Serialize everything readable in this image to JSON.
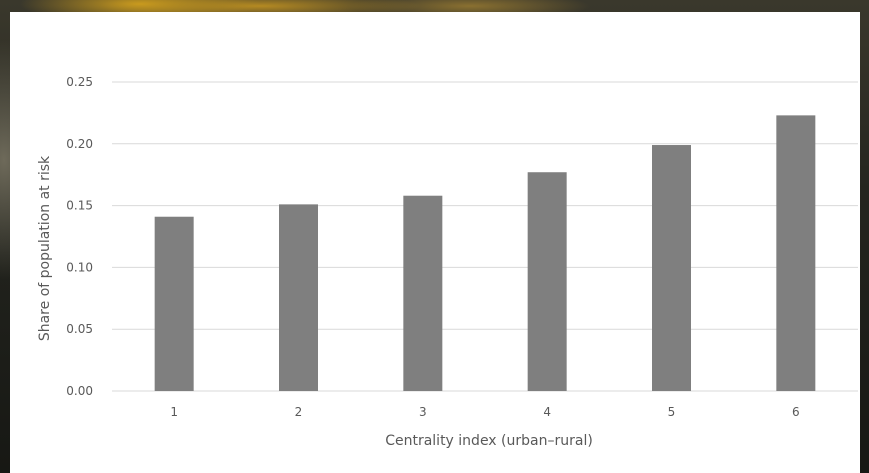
{
  "chart_data": {
    "type": "bar",
    "categories": [
      "1",
      "2",
      "3",
      "4",
      "5",
      "6"
    ],
    "values": [
      0.141,
      0.151,
      0.158,
      0.177,
      0.199,
      0.223
    ],
    "title": "",
    "xlabel": "Centrality index (urban–rural)",
    "ylabel": "Share of population at risk",
    "ylim": [
      0,
      0.25
    ],
    "yticks": [
      "0.00",
      "0.05",
      "0.10",
      "0.15",
      "0.20",
      "0.25"
    ],
    "grid": true,
    "legend": "none",
    "bar_color": "#7f7f7f"
  }
}
